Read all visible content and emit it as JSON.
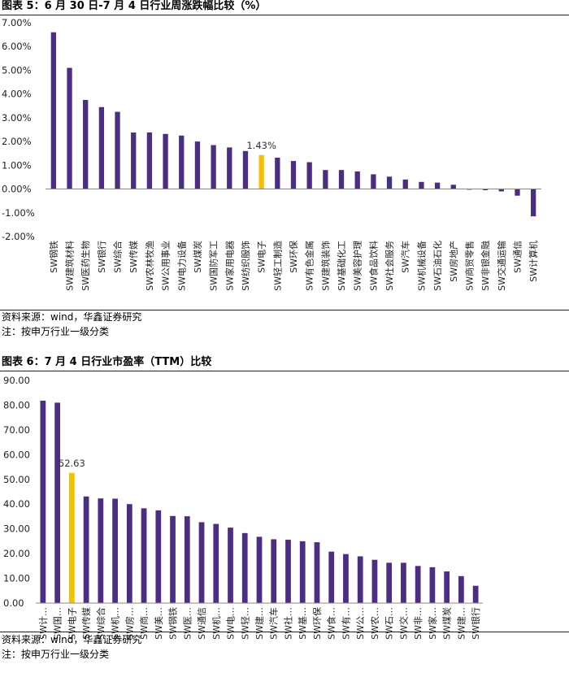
{
  "colors": {
    "bar": "#4B2E83",
    "highlight": "#F5C000",
    "axis": "#888888"
  },
  "chart1": {
    "title": "图表 5：6 月 30 日-7 月 4 日行业周涨跌幅比较（%）",
    "source": "资料来源：wind，华鑫证券研究",
    "note": "注：按申万行业一级分类"
  },
  "chart2": {
    "title": "图表 6：7 月 4 日行业市盈率（TTM）比较",
    "source": "资料来源：wind，华鑫证券研究",
    "note": "注：按申万行业一级分类"
  },
  "chart_data": [
    {
      "type": "bar",
      "title": "图表 5：6 月 30 日-7 月 4 日行业周涨跌幅比较（%）",
      "xlabel": "",
      "ylabel": "",
      "ylim": [
        -2.0,
        7.0
      ],
      "y_ticks": [
        "7.00%",
        "6.00%",
        "5.00%",
        "4.00%",
        "3.00%",
        "2.00%",
        "1.00%",
        "0.00%",
        "-1.00%",
        "-2.00%"
      ],
      "grid": false,
      "categories": [
        "SW钢铁",
        "SW建筑材料",
        "SW医药生物",
        "SW银行",
        "SW综合",
        "SW传媒",
        "SW农林牧渔",
        "SW公用事业",
        "SW电力设备",
        "SW煤炭",
        "SW国防军工",
        "SW家用电器",
        "SW纺织服饰",
        "SW电子",
        "SW轻工制造",
        "SW环保",
        "SW有色金属",
        "SW建筑装饰",
        "SW基础化工",
        "SW美容护理",
        "SW食品饮料",
        "SW社会服务",
        "SW汽车",
        "SW机械设备",
        "SW石油石化",
        "SW房地产",
        "SW商贸零售",
        "SW非银金融",
        "SW交通运输",
        "SW通信",
        "SW计算机"
      ],
      "values": [
        6.6,
        5.1,
        3.75,
        3.45,
        3.25,
        2.38,
        2.38,
        2.32,
        2.25,
        2.0,
        1.85,
        1.75,
        1.6,
        1.43,
        1.32,
        1.18,
        1.13,
        0.8,
        0.8,
        0.74,
        0.62,
        0.52,
        0.4,
        0.3,
        0.27,
        0.18,
        -0.03,
        -0.05,
        -0.1,
        -0.28,
        -1.15
      ],
      "highlight": "SW电子",
      "data_labels": [
        {
          "category": "SW电子",
          "text": "1.43%"
        }
      ]
    },
    {
      "type": "bar",
      "title": "图表 6：7 月 4 日行业市盈率（TTM）比较",
      "xlabel": "",
      "ylabel": "",
      "ylim": [
        0,
        90
      ],
      "y_ticks": [
        "90.00",
        "80.00",
        "70.00",
        "60.00",
        "50.00",
        "40.00",
        "30.00",
        "20.00",
        "10.00",
        "0.00"
      ],
      "grid": false,
      "categories": [
        "SW计…",
        "SW国…",
        "SW电子",
        "SW传媒",
        "SW综合",
        "SW机…",
        "SW房…",
        "SW商…",
        "SW美…",
        "SW钢铁",
        "SW医…",
        "SW通信",
        "SW机…",
        "SW电…",
        "SW轻…",
        "SW建…",
        "SW汽车",
        "SW社…",
        "SW基…",
        "SW环保",
        "SW食…",
        "SW有…",
        "SW公…",
        "SW农…",
        "SW石…",
        "SW交…",
        "SW非…",
        "SW家…",
        "SW煤炭",
        "SW建…",
        "SW银行"
      ],
      "values": [
        81.8,
        81.0,
        52.63,
        43.1,
        42.3,
        42.2,
        40.0,
        38.3,
        37.5,
        35.2,
        35.1,
        32.7,
        32.0,
        30.5,
        28.3,
        26.8,
        25.8,
        25.6,
        25.0,
        24.6,
        20.8,
        19.8,
        18.9,
        17.5,
        16.3,
        16.3,
        15.0,
        14.5,
        12.8,
        10.9,
        7.0
      ],
      "highlight": "SW电子",
      "data_labels": [
        {
          "category": "SW电子",
          "text": "52.63"
        }
      ]
    }
  ]
}
